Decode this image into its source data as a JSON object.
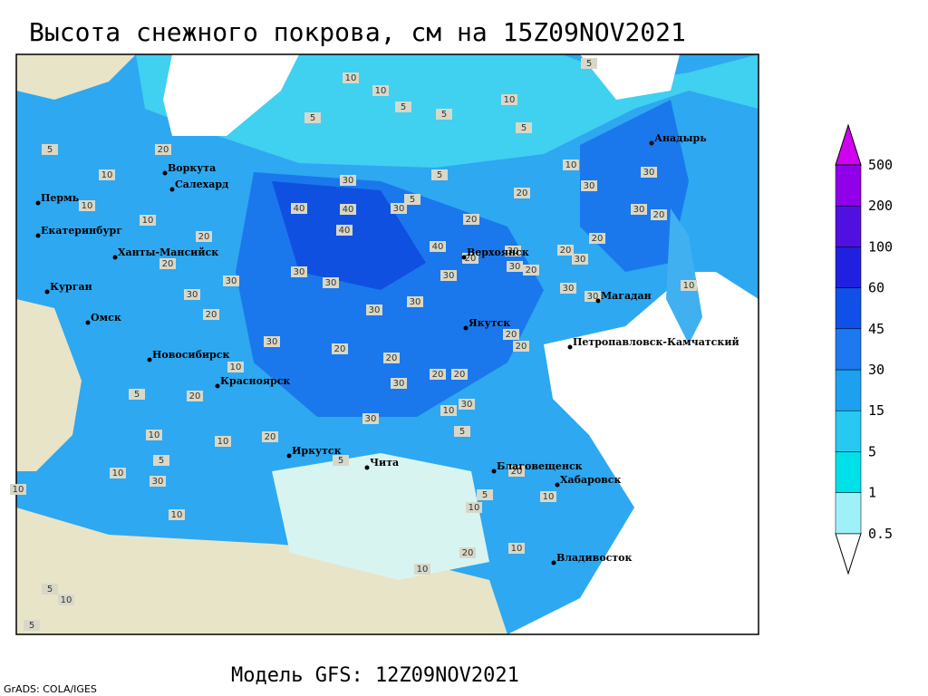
{
  "title": "Высота снежного покрова, см на 15Z09NOV2021",
  "footer": "Модель GFS: 12Z09NOV2021",
  "credit": "GrADS: COLA/IGES",
  "cities": [
    "Анадырь",
    "Воркута",
    "Салехард",
    "Пермь",
    "Екатеринбург",
    "Ханты-Мансийск",
    "Курган",
    "Омск",
    "Новосибирск",
    "Красноярск",
    "Иркутск",
    "Чита",
    "Верхоянск",
    "Якутск",
    "Магадан",
    "Петропавловск-Камчатский",
    "Благовещенск",
    "Хабаровск",
    "Владивосток"
  ],
  "contour_labels": [
    10,
    10,
    5,
    5,
    10,
    5,
    5,
    5,
    20,
    10,
    10,
    10,
    20,
    20,
    30,
    30,
    30,
    40,
    40,
    40,
    30,
    40,
    30,
    30,
    30,
    20,
    30,
    30,
    20,
    20,
    20,
    30,
    30,
    10,
    20,
    20,
    30,
    20,
    20,
    30,
    30,
    30,
    20,
    20,
    20,
    30,
    30,
    30,
    20,
    10,
    20,
    10,
    10,
    5,
    20,
    10,
    10,
    10,
    10,
    5,
    5,
    30,
    20,
    10,
    20,
    5,
    10,
    10,
    20,
    10,
    30,
    10,
    5,
    5,
    5,
    5,
    10,
    5,
    5,
    30,
    20,
    30
  ],
  "legend": {
    "levels": [
      0.5,
      1,
      5,
      15,
      30,
      45,
      60,
      100,
      200,
      500
    ],
    "colors": [
      "#ffffff",
      "#a0f0fa",
      "#00e0e8",
      "#28c8f0",
      "#1ea0f0",
      "#1e78f0",
      "#1050e8",
      "#2020e0",
      "#5010e0",
      "#9000e8",
      "#d000f0"
    ]
  }
}
